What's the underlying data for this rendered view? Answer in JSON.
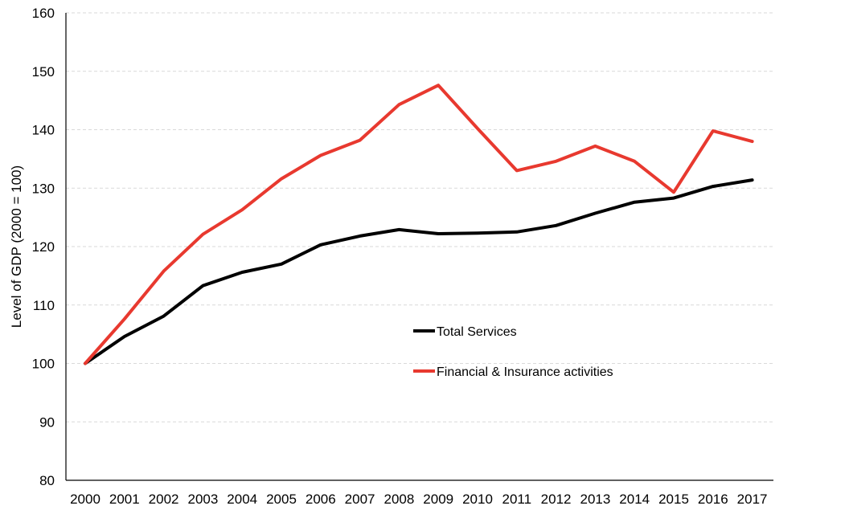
{
  "chart_data": {
    "type": "line",
    "title": "",
    "xlabel": "",
    "ylabel": "Level of GDP (2000 = 100)",
    "ylim": [
      80,
      160
    ],
    "yticks": [
      80,
      90,
      100,
      110,
      120,
      130,
      140,
      150,
      160
    ],
    "grid": true,
    "legend_position": "center-right",
    "categories": [
      "2000",
      "2001",
      "2002",
      "2003",
      "2004",
      "2005",
      "2006",
      "2007",
      "2008",
      "2009",
      "2010",
      "2011",
      "2012",
      "2013",
      "2014",
      "2015",
      "2016",
      "2017"
    ],
    "series": [
      {
        "name": "Total Services",
        "color": "#000000",
        "values": [
          100,
          104.6,
          108.1,
          113.3,
          115.6,
          117.0,
          120.3,
          121.8,
          122.9,
          122.2,
          122.3,
          122.5,
          123.6,
          125.7,
          127.6,
          128.3,
          130.3,
          131.4
        ]
      },
      {
        "name": "Financial & Insurance activities",
        "color": "#e8392f",
        "values": [
          100,
          107.6,
          115.8,
          122.1,
          126.3,
          131.6,
          135.6,
          138.2,
          144.3,
          147.6,
          140.2,
          133.0,
          134.6,
          137.2,
          134.6,
          129.3,
          139.8,
          138.0
        ]
      }
    ]
  }
}
